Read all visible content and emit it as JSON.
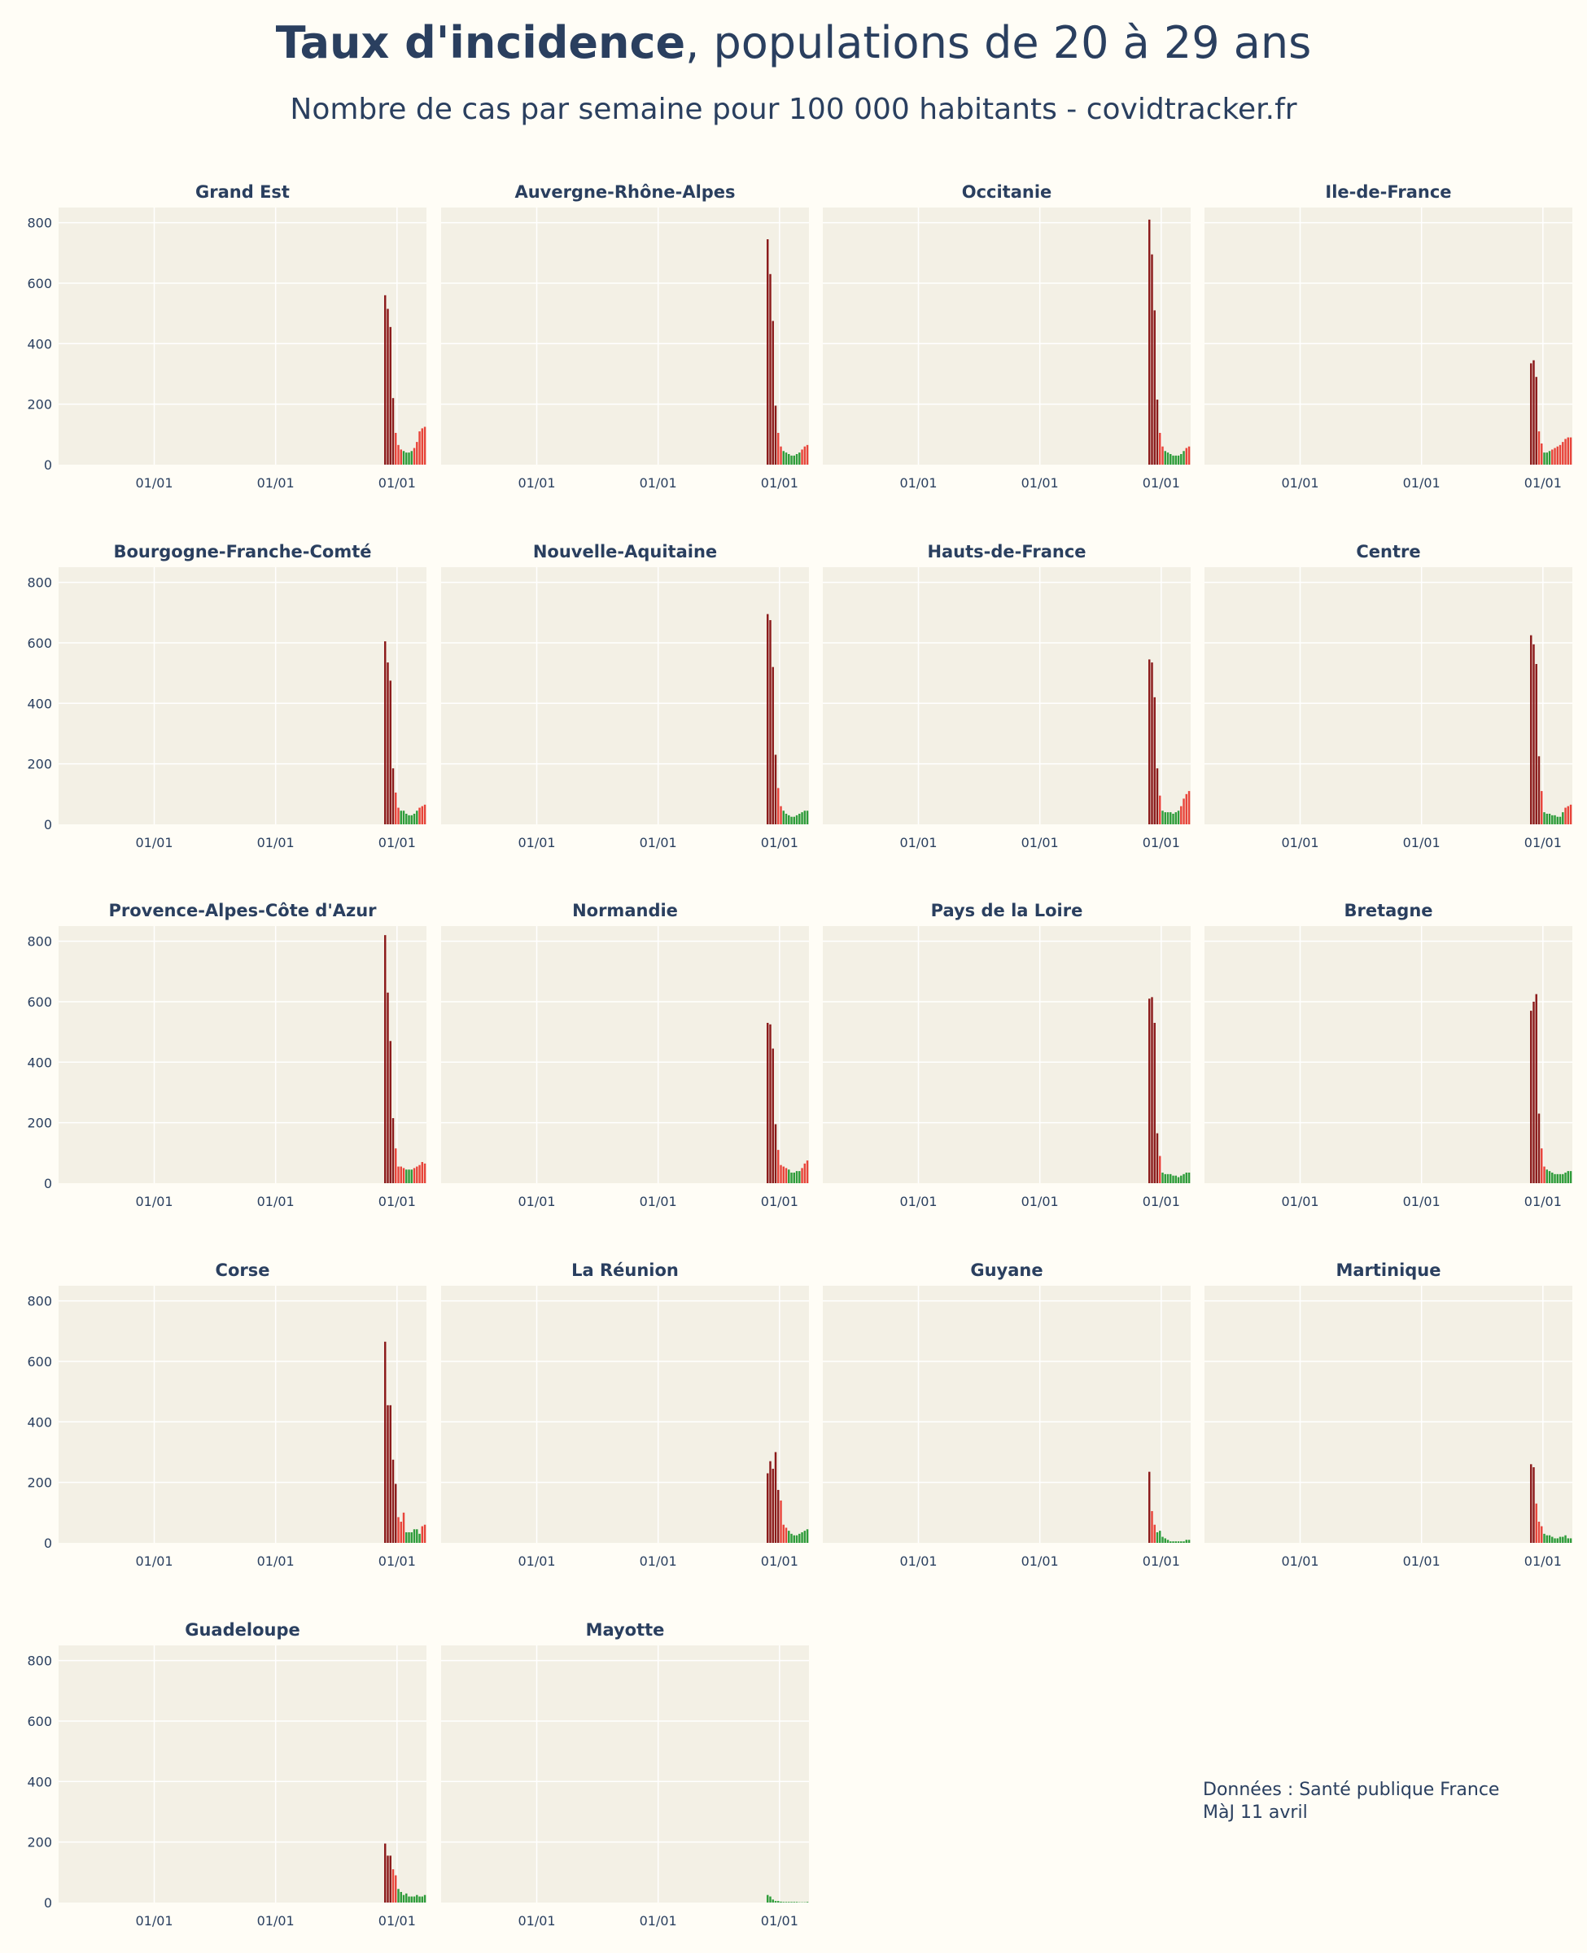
{
  "title_bold": "Taux d'incidence",
  "title_rest": ", populations de 20 à 29 ans",
  "subtitle": "Nombre de cas par semaine pour 100 000 habitants - covidtracker.fr",
  "source_line1": "Données : Santé publique France",
  "source_line2": "MàJ 11 avril",
  "colors": {
    "high": "#8b1a1a",
    "mid": "#e8443a",
    "low": "#2e9c3a",
    "plot_bg": "#f3f0e5",
    "grid": "#ffffff"
  },
  "chart_data": {
    "type": "bar",
    "y_ticks": [
      0,
      200,
      400,
      600,
      800
    ],
    "ylim": [
      0,
      850
    ],
    "x_tick_labels": [
      "01/01",
      "01/01",
      "01/01"
    ],
    "regions": [
      {
        "name": "Grand Est",
        "values": [
          560,
          515,
          455,
          220,
          105,
          65,
          50,
          45,
          40,
          40,
          45,
          55,
          75,
          110,
          120,
          125
        ]
      },
      {
        "name": "Auvergne-Rhône-Alpes",
        "values": [
          745,
          630,
          475,
          195,
          105,
          60,
          45,
          40,
          35,
          30,
          30,
          35,
          40,
          50,
          60,
          65
        ]
      },
      {
        "name": "Occitanie",
        "values": [
          810,
          695,
          510,
          215,
          105,
          60,
          45,
          40,
          35,
          30,
          30,
          30,
          35,
          45,
          55,
          60
        ]
      },
      {
        "name": "Ile-de-France",
        "values": [
          335,
          345,
          290,
          110,
          70,
          40,
          40,
          45,
          50,
          55,
          60,
          65,
          75,
          85,
          90,
          90
        ]
      },
      {
        "name": "Bourgogne-Franche-Comté",
        "values": [
          605,
          535,
          475,
          185,
          105,
          55,
          45,
          45,
          35,
          30,
          30,
          35,
          45,
          55,
          60,
          65
        ]
      },
      {
        "name": "Nouvelle-Aquitaine",
        "values": [
          695,
          675,
          520,
          230,
          120,
          60,
          45,
          35,
          30,
          25,
          25,
          30,
          35,
          40,
          45,
          45
        ]
      },
      {
        "name": "Hauts-de-France",
        "values": [
          545,
          535,
          420,
          185,
          95,
          45,
          40,
          40,
          40,
          35,
          40,
          45,
          60,
          85,
          100,
          110
        ]
      },
      {
        "name": "Centre",
        "values": [
          625,
          595,
          530,
          225,
          110,
          40,
          35,
          35,
          30,
          30,
          25,
          25,
          40,
          55,
          60,
          65
        ]
      },
      {
        "name": "Provence-Alpes-Côte d'Azur",
        "values": [
          820,
          630,
          470,
          215,
          115,
          55,
          55,
          50,
          45,
          45,
          45,
          50,
          55,
          60,
          70,
          65
        ]
      },
      {
        "name": "Normandie",
        "values": [
          530,
          525,
          445,
          195,
          110,
          60,
          55,
          50,
          45,
          35,
          35,
          40,
          40,
          50,
          65,
          75
        ]
      },
      {
        "name": "Pays de la Loire",
        "values": [
          610,
          615,
          530,
          165,
          90,
          35,
          30,
          30,
          30,
          25,
          25,
          20,
          25,
          30,
          35,
          35
        ]
      },
      {
        "name": "Bretagne",
        "values": [
          570,
          600,
          625,
          230,
          115,
          55,
          45,
          40,
          35,
          30,
          30,
          30,
          30,
          35,
          40,
          40
        ]
      },
      {
        "name": "Corse",
        "values": [
          665,
          455,
          455,
          275,
          195,
          85,
          70,
          100,
          35,
          35,
          35,
          45,
          45,
          30,
          55,
          60
        ]
      },
      {
        "name": "La Réunion",
        "values": [
          230,
          270,
          245,
          300,
          175,
          140,
          60,
          50,
          40,
          30,
          25,
          25,
          30,
          35,
          40,
          45
        ]
      },
      {
        "name": "Guyane",
        "values": [
          235,
          105,
          60,
          35,
          40,
          20,
          15,
          10,
          5,
          5,
          5,
          5,
          5,
          5,
          10,
          10
        ]
      },
      {
        "name": "Martinique",
        "values": [
          260,
          250,
          130,
          70,
          55,
          30,
          25,
          25,
          20,
          15,
          15,
          20,
          20,
          25,
          15,
          15
        ]
      },
      {
        "name": "Guadeloupe",
        "values": [
          195,
          155,
          155,
          110,
          90,
          45,
          35,
          25,
          30,
          20,
          20,
          20,
          25,
          20,
          20,
          25
        ]
      },
      {
        "name": "Mayotte",
        "values": [
          25,
          20,
          10,
          5,
          5,
          3,
          2,
          2,
          2,
          2,
          2,
          2,
          1,
          1,
          1,
          2
        ]
      }
    ]
  }
}
